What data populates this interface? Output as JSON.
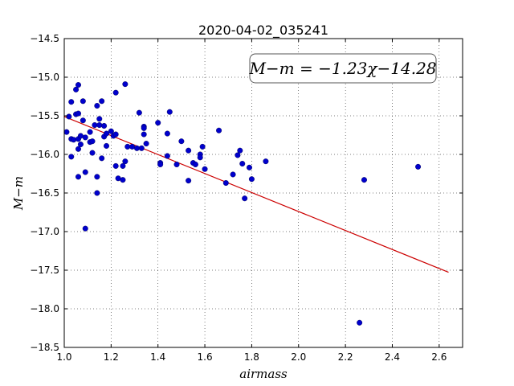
{
  "chart_data": {
    "type": "scatter",
    "title": "2020-04-02_035241",
    "xlabel": "airmass",
    "ylabel": "M−m",
    "xlim": [
      1.0,
      2.7
    ],
    "ylim": [
      -18.5,
      -14.5
    ],
    "grid": true,
    "x_ticks": [
      1.0,
      1.2,
      1.4,
      1.6,
      1.8,
      2.0,
      2.2,
      2.4,
      2.6
    ],
    "x_tick_labels": [
      "1.0",
      "1.2",
      "1.4",
      "1.6",
      "1.8",
      "2.0",
      "2.2",
      "2.4",
      "2.6"
    ],
    "y_ticks": [
      -14.5,
      -15.0,
      -15.5,
      -16.0,
      -16.5,
      -17.0,
      -17.5,
      -18.0,
      -18.5
    ],
    "y_tick_labels": [
      "−14.5",
      "−15.0",
      "−15.5",
      "−16.0",
      "−16.5",
      "−17.0",
      "−17.5",
      "−18.0",
      "−18.5"
    ],
    "annotation": "M−m = −1.23χ−14.28",
    "point_color": "#0000cc",
    "fit_color": "#cc0000",
    "fit": {
      "slope": -1.23,
      "intercept": -14.28,
      "x_range": [
        1.0,
        2.64
      ]
    },
    "points": [
      [
        1.01,
        -15.71
      ],
      [
        1.02,
        -15.51
      ],
      [
        1.03,
        -15.32
      ],
      [
        1.03,
        -15.8
      ],
      [
        1.03,
        -16.03
      ],
      [
        1.04,
        -15.81
      ],
      [
        1.05,
        -15.16
      ],
      [
        1.05,
        -15.48
      ],
      [
        1.06,
        -15.1
      ],
      [
        1.06,
        -15.47
      ],
      [
        1.06,
        -15.8
      ],
      [
        1.06,
        -15.93
      ],
      [
        1.06,
        -16.29
      ],
      [
        1.07,
        -15.87
      ],
      [
        1.07,
        -15.76
      ],
      [
        1.08,
        -15.31
      ],
      [
        1.08,
        -15.56
      ],
      [
        1.09,
        -15.78
      ],
      [
        1.09,
        -16.23
      ],
      [
        1.09,
        -16.96
      ],
      [
        1.11,
        -15.71
      ],
      [
        1.11,
        -15.84
      ],
      [
        1.12,
        -15.83
      ],
      [
        1.12,
        -15.98
      ],
      [
        1.13,
        -15.62
      ],
      [
        1.14,
        -15.37
      ],
      [
        1.14,
        -16.29
      ],
      [
        1.14,
        -16.5
      ],
      [
        1.15,
        -15.54
      ],
      [
        1.15,
        -15.62
      ],
      [
        1.16,
        -15.31
      ],
      [
        1.16,
        -16.05
      ],
      [
        1.17,
        -15.63
      ],
      [
        1.17,
        -15.77
      ],
      [
        1.18,
        -15.73
      ],
      [
        1.18,
        -15.89
      ],
      [
        1.2,
        -15.7
      ],
      [
        1.21,
        -15.76
      ],
      [
        1.22,
        -15.2
      ],
      [
        1.22,
        -15.74
      ],
      [
        1.22,
        -16.15
      ],
      [
        1.23,
        -16.31
      ],
      [
        1.25,
        -16.15
      ],
      [
        1.25,
        -16.33
      ],
      [
        1.26,
        -15.09
      ],
      [
        1.26,
        -16.09
      ],
      [
        1.27,
        -15.9
      ],
      [
        1.29,
        -15.9
      ],
      [
        1.31,
        -15.92
      ],
      [
        1.32,
        -15.46
      ],
      [
        1.33,
        -15.92
      ],
      [
        1.34,
        -15.64
      ],
      [
        1.34,
        -15.66
      ],
      [
        1.34,
        -15.74
      ],
      [
        1.35,
        -15.86
      ],
      [
        1.4,
        -15.59
      ],
      [
        1.41,
        -16.11
      ],
      [
        1.41,
        -16.13
      ],
      [
        1.44,
        -15.73
      ],
      [
        1.44,
        -16.02
      ],
      [
        1.45,
        -15.45
      ],
      [
        1.48,
        -16.13
      ],
      [
        1.5,
        -15.83
      ],
      [
        1.53,
        -15.95
      ],
      [
        1.53,
        -16.34
      ],
      [
        1.55,
        -16.11
      ],
      [
        1.56,
        -16.13
      ],
      [
        1.58,
        -16.0
      ],
      [
        1.58,
        -16.04
      ],
      [
        1.59,
        -15.9
      ],
      [
        1.6,
        -16.19
      ],
      [
        1.66,
        -15.69
      ],
      [
        1.69,
        -16.37
      ],
      [
        1.72,
        -16.26
      ],
      [
        1.74,
        -16.01
      ],
      [
        1.75,
        -15.95
      ],
      [
        1.76,
        -16.12
      ],
      [
        1.77,
        -16.57
      ],
      [
        1.79,
        -16.17
      ],
      [
        1.8,
        -16.32
      ],
      [
        1.86,
        -16.09
      ],
      [
        2.26,
        -18.18
      ],
      [
        2.28,
        -16.33
      ],
      [
        2.51,
        -16.16
      ]
    ]
  }
}
